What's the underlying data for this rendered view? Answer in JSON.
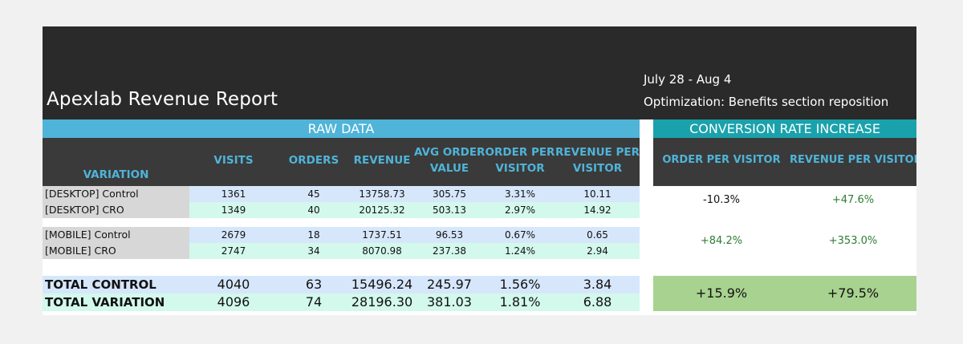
{
  "header": {
    "title": "Apexlab Revenue Report",
    "date_range": "July 28 - Aug 4",
    "optimization": "Optimization: Benefits section reposition"
  },
  "sections": {
    "raw": "RAW DATA",
    "conversion": "CONVERSION RATE INCREASE"
  },
  "columns": {
    "variation": "VARIATION",
    "visits": "VISITS",
    "orders": "ORDERS",
    "revenue": "REVENUE",
    "aov_line1": "AVG ORDER",
    "aov_line2": "VALUE",
    "opv_line1": "ORDER PER",
    "opv_line2": "VISITOR",
    "rpv_line1": "REVENUE PER",
    "rpv_line2": "VISITOR",
    "conv_opv": "ORDER PER VISITOR",
    "conv_rpv": "REVENUE PER VISITOR"
  },
  "rows": [
    {
      "label": "[DESKTOP] Control",
      "visits": "1361",
      "orders": "45",
      "revenue": "13758.73",
      "aov": "305.75",
      "opv": "3.31%",
      "rpv": "10.11"
    },
    {
      "label": "[DESKTOP] CRO",
      "visits": "1349",
      "orders": "40",
      "revenue": "20125.32",
      "aov": "503.13",
      "opv": "2.97%",
      "rpv": "14.92"
    },
    {
      "label": "[MOBILE] Control",
      "visits": "2679",
      "orders": "18",
      "revenue": "1737.51",
      "aov": "96.53",
      "opv": "0.67%",
      "rpv": "0.65"
    },
    {
      "label": "[MOBILE] CRO",
      "visits": "2747",
      "orders": "34",
      "revenue": "8070.98",
      "aov": "237.38",
      "opv": "1.24%",
      "rpv": "2.94"
    }
  ],
  "conversion": {
    "desktop": {
      "opv": "-10.3%",
      "rpv": "+47.6%"
    },
    "mobile": {
      "opv": "+84.2%",
      "rpv": "+353.0%"
    },
    "total": {
      "opv": "+15.9%",
      "rpv": "+79.5%"
    }
  },
  "totals": [
    {
      "label": "TOTAL CONTROL",
      "visits": "4040",
      "orders": "63",
      "revenue": "15496.24",
      "aov": "245.97",
      "opv": "1.56%",
      "rpv": "3.84"
    },
    {
      "label": "TOTAL VARIATION",
      "visits": "4096",
      "orders": "74",
      "revenue": "28196.30",
      "aov": "381.03",
      "opv": "1.81%",
      "rpv": "6.88"
    }
  ]
}
